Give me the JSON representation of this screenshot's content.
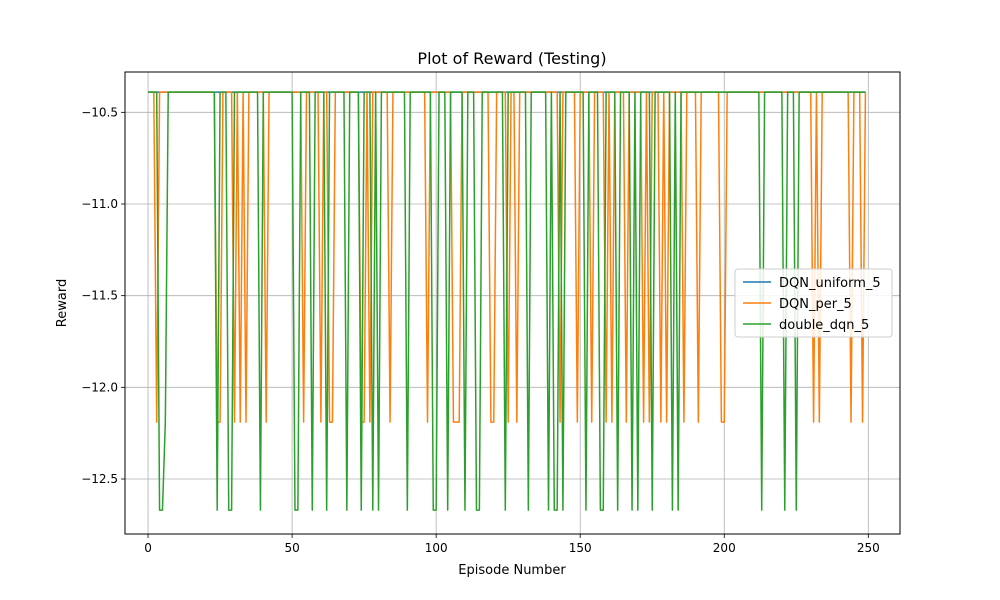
{
  "chart_data": {
    "type": "line",
    "title": "Plot of Reward (Testing)",
    "xlabel": "Episode Number",
    "ylabel": "Reward",
    "xlim": [
      -8,
      261
    ],
    "ylim": [
      -12.8,
      -10.28
    ],
    "xticks": [
      0,
      50,
      100,
      150,
      200,
      250
    ],
    "xtick_labels": [
      "0",
      "50",
      "100",
      "150",
      "200",
      "250"
    ],
    "yticks": [
      -10.5,
      -11.0,
      -11.5,
      -12.0,
      -12.5
    ],
    "ytick_labels": [
      "−10.5",
      "−11.0",
      "−11.5",
      "−12.0",
      "−12.5"
    ],
    "grid": true,
    "legend_position": "center-right",
    "series": [
      {
        "name": "DQN_uniform_5",
        "color": "#1f77b4",
        "base": -10.39,
        "dips": []
      },
      {
        "name": "DQN_per_5",
        "color": "#ff7f0e",
        "base": -10.39,
        "dips": [
          [
            3,
            -12.19
          ],
          [
            24,
            -12.19
          ],
          [
            25,
            -12.19
          ],
          [
            30,
            -12.19
          ],
          [
            32,
            -12.19
          ],
          [
            34,
            -12.19
          ],
          [
            41,
            -12.19
          ],
          [
            54,
            -12.19
          ],
          [
            60,
            -12.19
          ],
          [
            63,
            -12.19
          ],
          [
            64,
            -12.19
          ],
          [
            74,
            -12.19
          ],
          [
            75,
            -12.19
          ],
          [
            77,
            -12.19
          ],
          [
            84,
            -12.19
          ],
          [
            97,
            -12.19
          ],
          [
            106,
            -12.19
          ],
          [
            107,
            -12.19
          ],
          [
            108,
            -12.19
          ],
          [
            119,
            -12.19
          ],
          [
            120,
            -12.19
          ],
          [
            125,
            -12.19
          ],
          [
            128,
            -12.19
          ],
          [
            143,
            -12.19
          ],
          [
            149,
            -12.19
          ],
          [
            154,
            -12.19
          ],
          [
            159,
            -12.19
          ],
          [
            161,
            -12.19
          ],
          [
            166,
            -12.19
          ],
          [
            172,
            -12.19
          ],
          [
            174,
            -12.19
          ],
          [
            178,
            -12.19
          ],
          [
            180,
            -12.19
          ],
          [
            186,
            -12.19
          ],
          [
            191,
            -12.19
          ],
          [
            199,
            -12.19
          ],
          [
            200,
            -12.19
          ],
          [
            231,
            -12.19
          ],
          [
            233,
            -12.19
          ],
          [
            244,
            -12.19
          ],
          [
            248,
            -12.19
          ]
        ]
      },
      {
        "name": "double_dqn_5",
        "color": "#2ca02c",
        "base": -10.39,
        "dips": [
          [
            4,
            -12.67
          ],
          [
            5,
            -12.67
          ],
          [
            6,
            -12.19
          ],
          [
            24,
            -12.67
          ],
          [
            28,
            -12.67
          ],
          [
            29,
            -12.67
          ],
          [
            39,
            -12.67
          ],
          [
            51,
            -12.67
          ],
          [
            52,
            -12.67
          ],
          [
            57,
            -12.67
          ],
          [
            62,
            -12.67
          ],
          [
            69,
            -12.67
          ],
          [
            74,
            -12.67
          ],
          [
            78,
            -12.67
          ],
          [
            80,
            -12.67
          ],
          [
            90,
            -12.67
          ],
          [
            99,
            -12.67
          ],
          [
            100,
            -12.67
          ],
          [
            104,
            -12.67
          ],
          [
            110,
            -12.67
          ],
          [
            114,
            -12.67
          ],
          [
            115,
            -12.67
          ],
          [
            124,
            -12.67
          ],
          [
            132,
            -12.67
          ],
          [
            139,
            -12.67
          ],
          [
            141,
            -12.67
          ],
          [
            142,
            -12.67
          ],
          [
            144,
            -12.67
          ],
          [
            152,
            -12.67
          ],
          [
            157,
            -12.67
          ],
          [
            158,
            -12.67
          ],
          [
            163,
            -12.67
          ],
          [
            168,
            -12.67
          ],
          [
            170,
            -12.67
          ],
          [
            175,
            -12.67
          ],
          [
            182,
            -12.67
          ],
          [
            184,
            -12.67
          ],
          [
            213,
            -12.67
          ],
          [
            221,
            -12.67
          ],
          [
            225,
            -12.67
          ]
        ]
      }
    ]
  }
}
